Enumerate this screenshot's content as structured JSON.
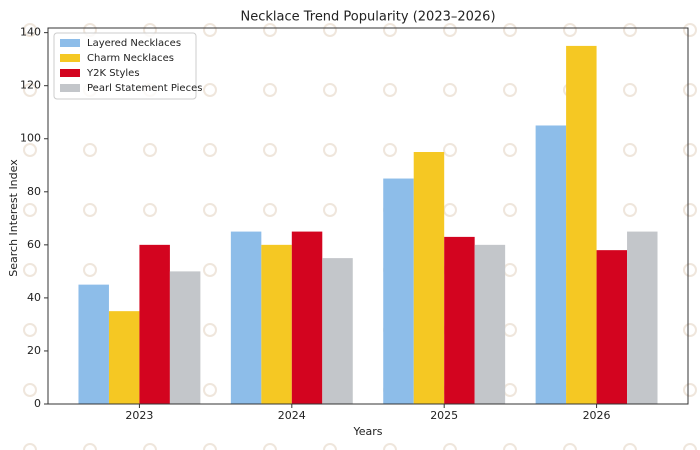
{
  "chart_data": {
    "type": "bar",
    "title": "Necklace Trend Popularity (2023–2026)",
    "x_label": "Years",
    "y_label": "Search Interest Index",
    "categories": [
      "2023",
      "2024",
      "2025",
      "2026"
    ],
    "series": [
      {
        "name": "Layered Necklaces",
        "color": "#8dbde9",
        "values": [
          45,
          65,
          85,
          105
        ]
      },
      {
        "name": "Charm Necklaces",
        "color": "#f5c823",
        "values": [
          35,
          60,
          95,
          135
        ]
      },
      {
        "name": "Y2K Styles",
        "color": "#d3041f",
        "values": [
          60,
          65,
          63,
          58
        ]
      },
      {
        "name": "Pearl Statement Pieces",
        "color": "#c3c6ca",
        "values": [
          50,
          55,
          60,
          65
        ]
      }
    ],
    "ylim": [
      0,
      141.75
    ],
    "yticks": [
      0,
      20,
      40,
      60,
      80,
      100,
      120,
      140
    ],
    "legend": "upper-left"
  }
}
